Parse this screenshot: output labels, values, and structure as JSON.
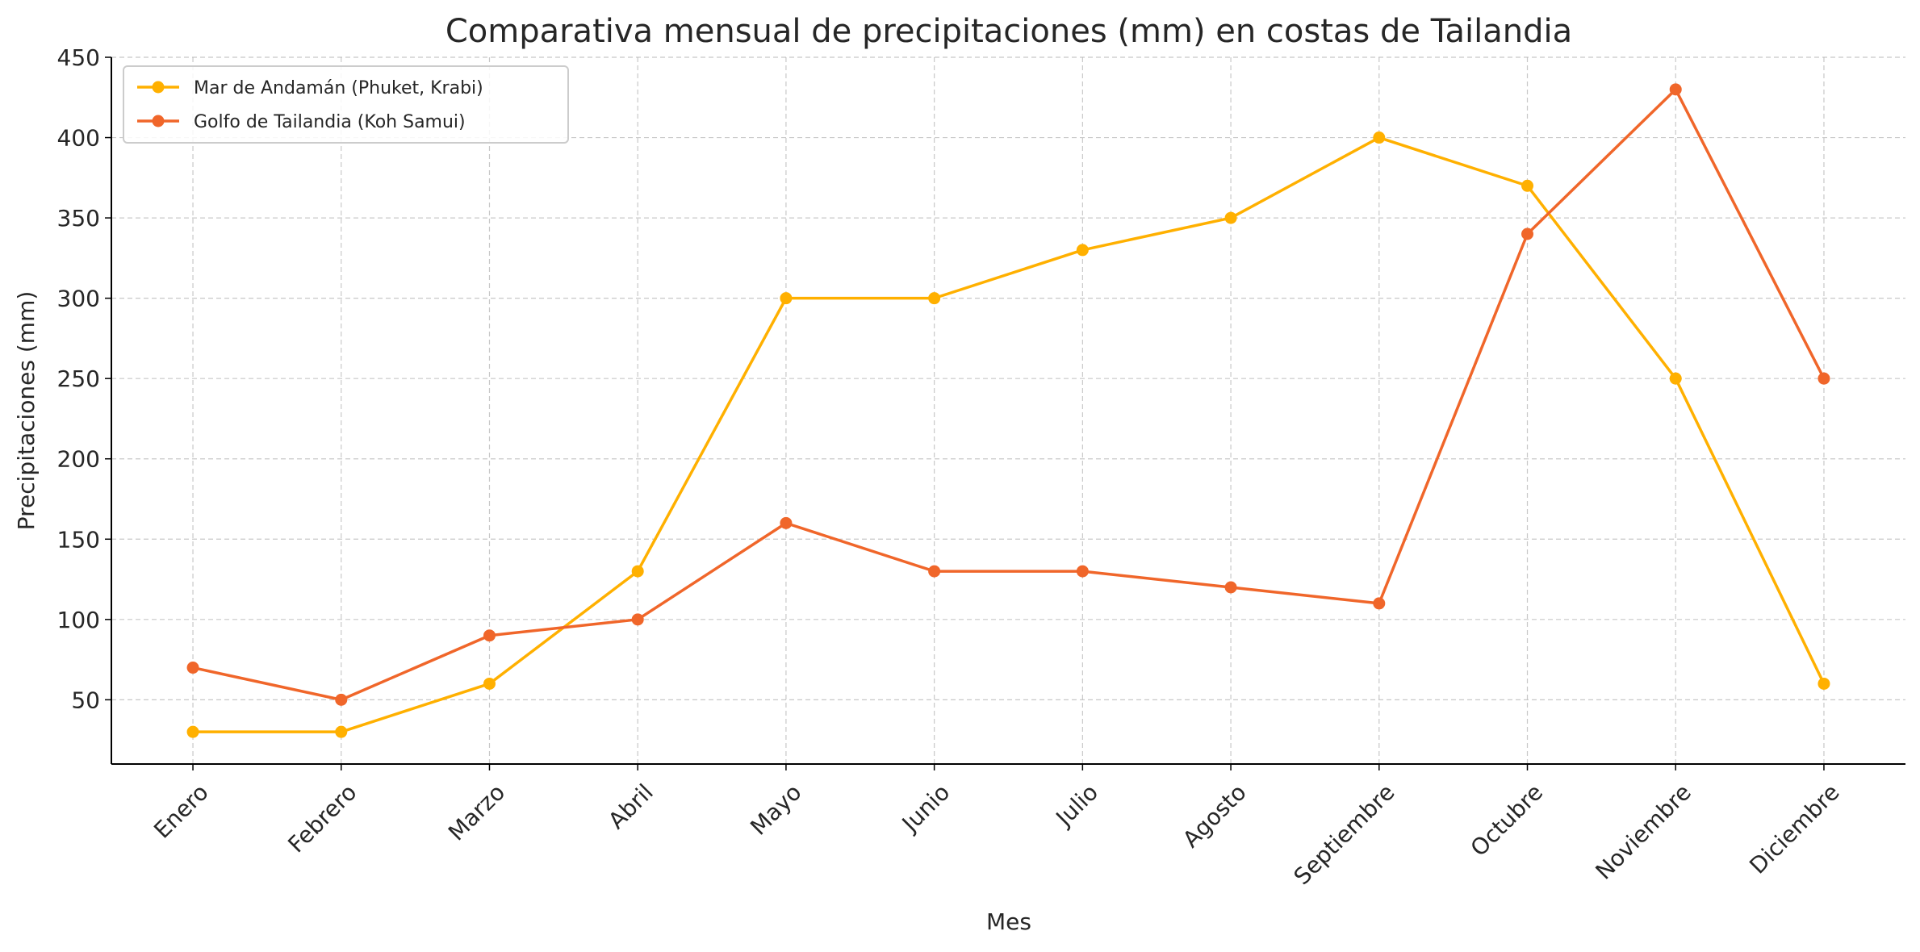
{
  "chart_data": {
    "type": "line",
    "title": "Comparativa mensual de precipitaciones (mm) en costas de Tailandia",
    "xlabel": "Mes",
    "ylabel": "Precipitaciones (mm)",
    "categories": [
      "Enero",
      "Febrero",
      "Marzo",
      "Abril",
      "Mayo",
      "Junio",
      "Julio",
      "Agosto",
      "Septiembre",
      "Octubre",
      "Noviembre",
      "Diciembre"
    ],
    "ylim": [
      10,
      450
    ],
    "yticks": [
      50,
      100,
      150,
      200,
      250,
      300,
      350,
      400,
      450
    ],
    "grid": true,
    "legend_position": "top-left",
    "series": [
      {
        "name": "Mar de Andamán (Phuket, Krabi)",
        "color": "#FFB000",
        "values": [
          30,
          30,
          60,
          130,
          300,
          300,
          330,
          350,
          400,
          370,
          250,
          60
        ]
      },
      {
        "name": "Golfo de Tailandia (Koh Samui)",
        "color": "#F0662A",
        "values": [
          70,
          50,
          90,
          100,
          160,
          130,
          130,
          120,
          110,
          340,
          430,
          250
        ]
      }
    ]
  }
}
